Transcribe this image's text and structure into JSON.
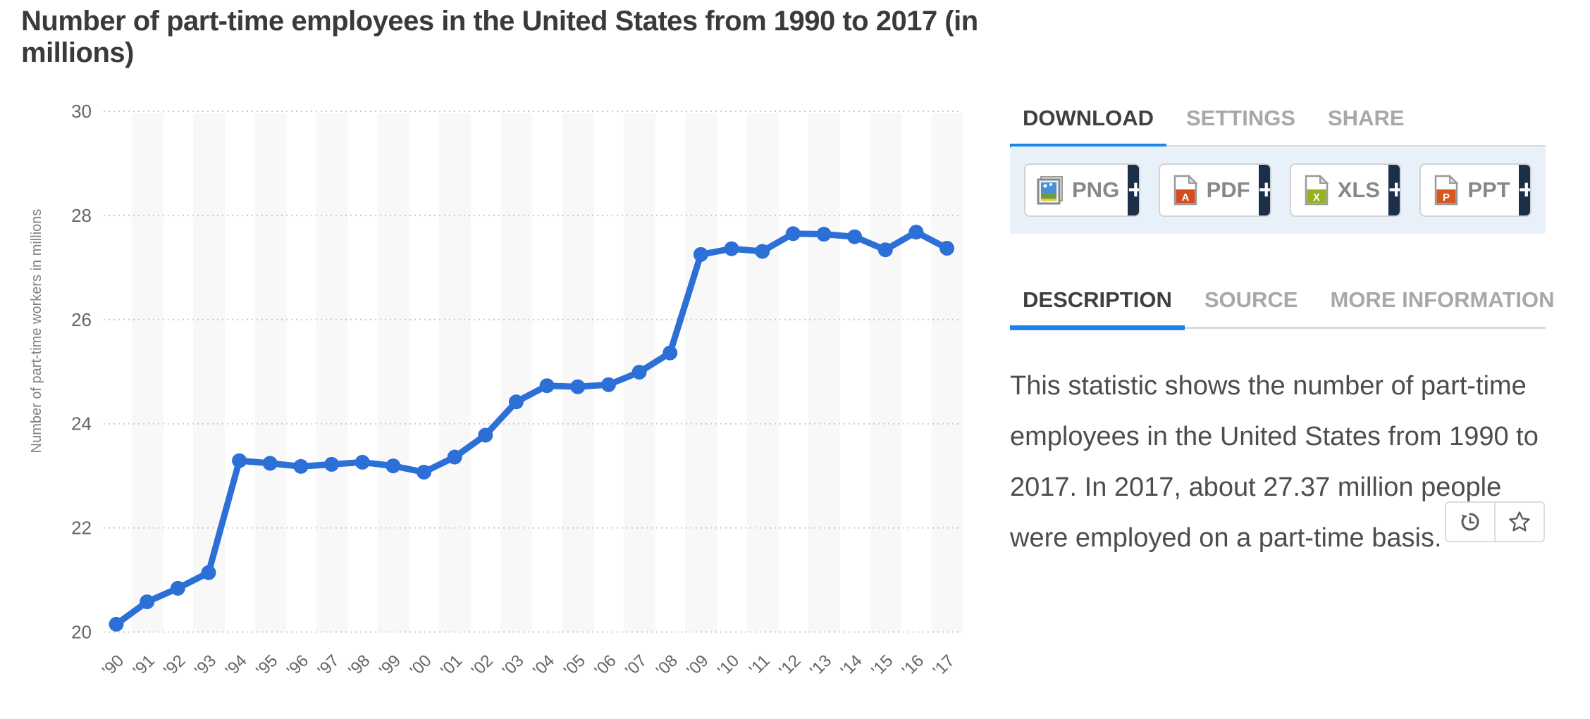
{
  "page": {
    "title": "Number of part-time employees in the United States from 1990 to 2017 (in millions)"
  },
  "chart_data": {
    "type": "line",
    "title": "Number of part-time employees in the United States from 1990 to 2017 (in millions)",
    "xlabel": "",
    "ylabel": "Number of part-time workers in millions",
    "categories": [
      "'90",
      "'91",
      "'92",
      "'93",
      "'94",
      "'95",
      "'96",
      "'97",
      "'98",
      "'99",
      "'00",
      "'01",
      "'02",
      "'03",
      "'04",
      "'05",
      "'06",
      "'07",
      "'08",
      "'09",
      "'10",
      "'11",
      "'12",
      "'13",
      "'14",
      "'15",
      "'16",
      "'17"
    ],
    "years": [
      1990,
      1991,
      1992,
      1993,
      1994,
      1995,
      1996,
      1997,
      1998,
      1999,
      2000,
      2001,
      2002,
      2003,
      2004,
      2005,
      2006,
      2007,
      2008,
      2009,
      2010,
      2011,
      2012,
      2013,
      2014,
      2015,
      2016,
      2017
    ],
    "values": [
      20.15,
      20.58,
      20.84,
      21.14,
      23.29,
      23.24,
      23.18,
      23.22,
      23.26,
      23.19,
      23.07,
      23.36,
      23.78,
      24.42,
      24.73,
      24.71,
      24.75,
      24.99,
      25.36,
      27.25,
      27.36,
      27.31,
      27.65,
      27.64,
      27.59,
      27.34,
      27.68,
      27.37
    ],
    "ylim": [
      20,
      30
    ],
    "yticks": [
      20,
      22,
      24,
      26,
      28,
      30
    ],
    "grid": "horizontal-dotted",
    "background_stripes": "alternating-vertical",
    "legend": "none",
    "line_color": "#2c6fd6",
    "marker": "circle"
  },
  "panel": {
    "download_tabs": [
      {
        "label": "DOWNLOAD",
        "active": true
      },
      {
        "label": "SETTINGS",
        "active": false
      },
      {
        "label": "SHARE",
        "active": false
      }
    ],
    "download_buttons": [
      {
        "label": "PNG",
        "icon": "png-file-icon",
        "action_label": "+"
      },
      {
        "label": "PDF",
        "icon": "pdf-file-icon",
        "action_label": "+"
      },
      {
        "label": "XLS",
        "icon": "xls-file-icon",
        "action_label": "+"
      },
      {
        "label": "PPT",
        "icon": "ppt-file-icon",
        "action_label": "+"
      }
    ],
    "info_tabs": [
      {
        "label": "DESCRIPTION",
        "active": true
      },
      {
        "label": "SOURCE",
        "active": false
      },
      {
        "label": "MORE INFORMATION",
        "active": false
      }
    ],
    "description": "This statistic shows the number of part-time employees in the United States from 1990 to 2017. In 2017, about 27.37 million people were employed on a part-time basis.",
    "action_buttons": [
      {
        "name": "history",
        "icon": "history-icon"
      },
      {
        "name": "favorite",
        "icon": "star-icon"
      }
    ]
  },
  "colors": {
    "accent_blue": "#1a87e8",
    "line_blue": "#2c6fd6",
    "navy": "#1c2f49",
    "panel_bg": "#e8f1fa",
    "grid": "#c9c9c9",
    "stripe": "#f8f8f8",
    "tick_text": "#666666",
    "pdf_red": "#d64b20",
    "xls_green": "#94b320",
    "ppt_orange": "#d9571f"
  }
}
